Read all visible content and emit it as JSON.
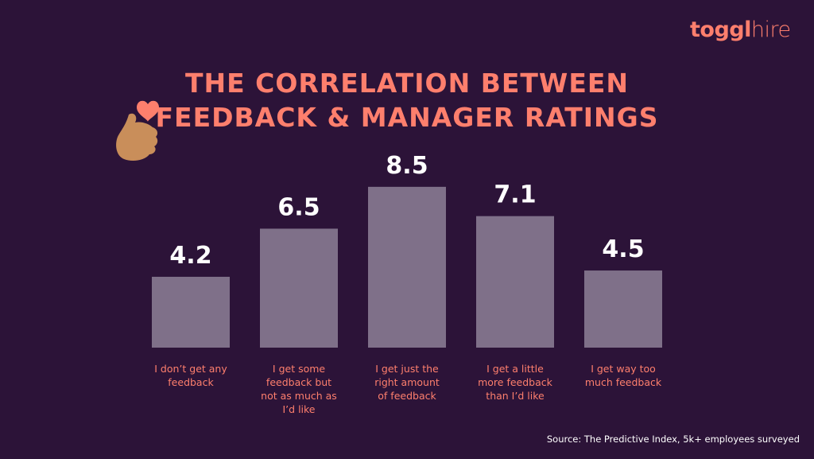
{
  "logo": {
    "bold": "toggl",
    "light": "hire"
  },
  "title_lines": [
    "THE CORRELATION BETWEEN",
    "FEEDBACK & MANAGER RATINGS"
  ],
  "source": "Source: The Predictive Index, 5k+ employees surveyed",
  "icon": "heart-hand-icon",
  "colors": {
    "background": "#2c1338",
    "accent": "#fe7f6d",
    "bar": "#7f7089",
    "value_label": "#ffffff"
  },
  "chart_data": {
    "type": "bar",
    "title": "THE CORRELATION BETWEEN FEEDBACK & MANAGER RATINGS",
    "categories": [
      "I don’t get any feedback",
      "I get some feedback but not as much as I’d like",
      "I get just the right amount of feedback",
      "I get a little more feedback than I’d like",
      "I get way too much feedback"
    ],
    "category_lines": [
      [
        "I don’t get any",
        "feedback"
      ],
      [
        "I get some",
        "feedback but",
        "not as much as",
        "I’d like"
      ],
      [
        "I get just the",
        "right amount",
        "of feedback"
      ],
      [
        "I get a little",
        "more feedback",
        "than I’d like"
      ],
      [
        "I get way too",
        "much feedback"
      ]
    ],
    "values": [
      4.2,
      6.5,
      8.5,
      7.1,
      4.5
    ],
    "value_labels": [
      "4.2",
      "6.5",
      "8.5",
      "7.1",
      "4.5"
    ],
    "xlabel": "",
    "ylabel": "",
    "grid": false,
    "axes_visible": false
  }
}
